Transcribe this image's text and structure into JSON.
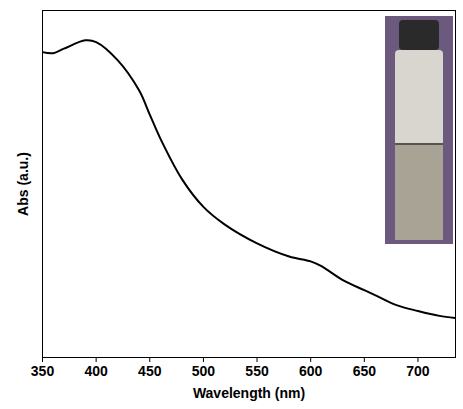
{
  "chart_data": {
    "type": "line",
    "x": [
      350,
      360,
      370,
      390,
      400,
      420,
      440,
      450,
      460,
      480,
      500,
      520,
      550,
      580,
      600,
      610,
      630,
      650,
      660,
      680,
      700,
      720,
      735
    ],
    "values": [
      0.88,
      0.877,
      0.89,
      0.914,
      0.909,
      0.857,
      0.77,
      0.7,
      0.63,
      0.514,
      0.434,
      0.383,
      0.329,
      0.291,
      0.277,
      0.263,
      0.223,
      0.194,
      0.18,
      0.151,
      0.134,
      0.12,
      0.114
    ],
    "color": "#000000",
    "xlabel": "Wavelength (nm)",
    "ylabel": "Abs (a.u.)",
    "xlim": [
      350,
      735
    ],
    "xticks": [
      350,
      400,
      450,
      500,
      550,
      600,
      650,
      700
    ],
    "ylim": [
      0,
      1
    ],
    "yticks": [],
    "tick_labels": "x"
  }
}
